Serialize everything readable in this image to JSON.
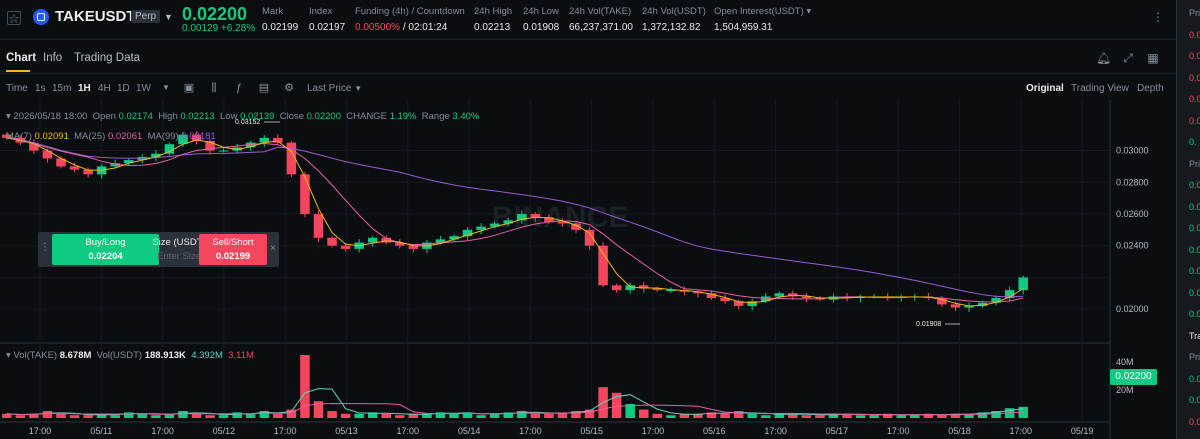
{
  "header": {
    "symbol": "TAKEUSDT",
    "contract_type": "Perp",
    "last_price": "0.02200",
    "price_change": "0.00129 +6.28%",
    "stats": [
      {
        "label": "Mark",
        "value": "0.02199"
      },
      {
        "label": "Index",
        "value": "0.02197"
      },
      {
        "label": "Funding (4h) / Countdown",
        "value_red": "0.00500%",
        "value": " / 02:01:24"
      },
      {
        "label": "24h High",
        "value": "0.02213"
      },
      {
        "label": "24h Low",
        "value": "0.01908"
      },
      {
        "label": "24h Vol(TAKE)",
        "value": "66,237,371.00"
      },
      {
        "label": "24h Vol(USDT)",
        "value": "1,372,132.82"
      },
      {
        "label": "Open Interest(USDT)",
        "value": "1,504,959.31"
      }
    ]
  },
  "tabs": [
    {
      "label": "Chart"
    },
    {
      "label": "Info"
    },
    {
      "label": "Trading Data"
    }
  ],
  "toolbar": {
    "time_label": "Time",
    "intervals": [
      "1s",
      "15m",
      "1H",
      "4H",
      "1D",
      "1W"
    ],
    "active_interval": "1H",
    "price_type": "Last Price",
    "views": [
      "Original",
      "Trading View",
      "Depth"
    ],
    "active_view": "Original"
  },
  "ohlc": {
    "date": "2026/05/18 18:00",
    "open_label": "Open",
    "open": "0.02174",
    "high_label": "High",
    "high": "0.02213",
    "low_label": "Low",
    "low": "0.02139",
    "close_label": "Close",
    "close": "0.02200",
    "change_label": "CHANGE",
    "change": "1.19%",
    "range_label": "Range",
    "range": "3.40%"
  },
  "ma": {
    "ma7_label": "MA(7)",
    "ma7": "0.02091",
    "ma25_label": "MA(25)",
    "ma25": "0.02061",
    "ma99_label": "MA(99)",
    "ma99": "0.02181"
  },
  "volume": {
    "vol_take_label": "Vol(TAKE)",
    "vol_take": "8.678M",
    "vol_usdt_label": "Vol(USDT)",
    "vol_usdt": "188.913K",
    "ma1": "4.392M",
    "ma2": "3.11M"
  },
  "order_widget": {
    "buy_label": "Buy/Long",
    "buy_price": "0.02204",
    "size_label": "Size (USDT)",
    "size_placeholder": "Enter Size",
    "sell_label": "Sell/Short",
    "sell_price": "0.02199"
  },
  "price_axis_ticks": [
    "0.03000",
    "0.02800",
    "0.02600",
    "0.02400",
    "0.02200",
    "0.02000"
  ],
  "current_price_tag": "0.02200",
  "volume_axis_ticks": [
    "40M",
    "20M"
  ],
  "time_axis_ticks": [
    "17:00",
    "05/11",
    "17:00",
    "05/12",
    "17:00",
    "05/13",
    "17:00",
    "05/14",
    "17:00",
    "05/15",
    "17:00",
    "05/16",
    "17:00",
    "05/17",
    "17:00",
    "05/18",
    "17:00",
    "05/19"
  ],
  "annotations": {
    "high_mark": "0.03152",
    "low_mark": "0.01908"
  },
  "watermark": "BINANCE",
  "colors": {
    "up": "#0ecb81",
    "down": "#f6465d",
    "ma7": "#f0b90b",
    "ma25": "#e75fa6",
    "ma99": "#9c5ad6",
    "accent": "#f0b90b"
  },
  "right_strip": {
    "rows": [
      {
        "text": "Pri",
        "color": "#848e9c"
      },
      {
        "text": "0.0",
        "color": "#f6465d"
      },
      {
        "text": "0.0",
        "color": "#f6465d"
      },
      {
        "text": "0.0",
        "color": "#f6465d"
      },
      {
        "text": "0.0",
        "color": "#f6465d"
      },
      {
        "text": "0.0",
        "color": "#f6465d"
      },
      {
        "text": "0.",
        "color": "#0ecb81"
      },
      {
        "text": "Pri",
        "color": "#848e9c"
      },
      {
        "text": "0.0",
        "color": "#0ecb81"
      },
      {
        "text": "0.0",
        "color": "#0ecb81"
      },
      {
        "text": "0.0",
        "color": "#0ecb81"
      },
      {
        "text": "0.0",
        "color": "#0ecb81"
      },
      {
        "text": "0.0",
        "color": "#0ecb81"
      },
      {
        "text": "0.0",
        "color": "#0ecb81"
      },
      {
        "text": "0.0",
        "color": "#0ecb81"
      },
      {
        "text": "Tra",
        "color": "#eaecef"
      },
      {
        "text": "Pri",
        "color": "#848e9c"
      },
      {
        "text": "0.0",
        "color": "#0ecb81"
      },
      {
        "text": "0.0",
        "color": "#0ecb81"
      },
      {
        "text": "0.0",
        "color": "#f6465d"
      }
    ]
  },
  "chart_data": {
    "type": "candlestick",
    "interval": "1H",
    "price_range": [
      0.019,
      0.0318
    ],
    "volume_range": [
      0,
      45000000
    ],
    "close_series": [
      0.0308,
      0.0305,
      0.03,
      0.0295,
      0.029,
      0.0288,
      0.0285,
      0.029,
      0.0292,
      0.0294,
      0.0296,
      0.0298,
      0.0304,
      0.031,
      0.0306,
      0.03,
      0.03,
      0.0302,
      0.0305,
      0.0308,
      0.0305,
      0.0285,
      0.026,
      0.0245,
      0.024,
      0.0238,
      0.0242,
      0.0245,
      0.0242,
      0.024,
      0.0238,
      0.0242,
      0.0244,
      0.0246,
      0.025,
      0.0252,
      0.0254,
      0.0256,
      0.026,
      0.0258,
      0.0255,
      0.0254,
      0.025,
      0.024,
      0.0215,
      0.0212,
      0.0215,
      0.0213,
      0.0212,
      0.0212,
      0.0211,
      0.021,
      0.0207,
      0.0205,
      0.0202,
      0.0205,
      0.0208,
      0.021,
      0.0208,
      0.0207,
      0.0206,
      0.0208,
      0.0207,
      0.0208,
      0.0208,
      0.0207,
      0.0208,
      0.0208,
      0.0207,
      0.0203,
      0.0201,
      0.0202,
      0.0204,
      0.0207,
      0.0212,
      0.022
    ],
    "volume_series_m": [
      3,
      2,
      3,
      5,
      3,
      2,
      2,
      3,
      2,
      4,
      3,
      2,
      3,
      5,
      3,
      2,
      2,
      4,
      3,
      5,
      3,
      6,
      45,
      12,
      5,
      3,
      3,
      4,
      3,
      2,
      3,
      3,
      4,
      3,
      4,
      2,
      3,
      4,
      5,
      3,
      3,
      4,
      5,
      6,
      22,
      18,
      10,
      6,
      3,
      2,
      3,
      3,
      4,
      3,
      5,
      3,
      2,
      3,
      3,
      2,
      2,
      3,
      3,
      2,
      2,
      3,
      2,
      2,
      3,
      2,
      3,
      3,
      4,
      5,
      7,
      8
    ]
  }
}
